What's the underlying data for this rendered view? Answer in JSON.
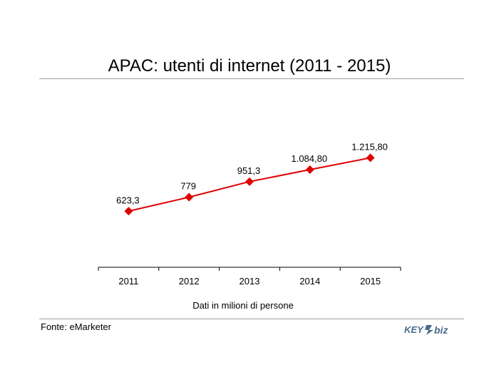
{
  "chart_data": {
    "type": "line",
    "title": "APAC: utenti di internet (2011 - 2015)",
    "xlabel": "Dati in milioni di persone",
    "ylabel": "",
    "categories": [
      "2011",
      "2012",
      "2013",
      "2014",
      "2015"
    ],
    "series": [
      {
        "values": [
          623.3,
          779,
          951.3,
          1084.8,
          1215.8
        ],
        "labels": [
          "623,3",
          "779",
          "951,3",
          "1.084,80",
          "1.215,80"
        ],
        "color": "#e00000"
      }
    ],
    "ylim": [
      0,
      1900
    ],
    "grid": false,
    "legend": "none"
  },
  "footer": {
    "source": "Fonte: eMarketer"
  },
  "logo": {
    "text_left": "KEY",
    "text_right": "biz",
    "color": "#4a6a8c"
  }
}
